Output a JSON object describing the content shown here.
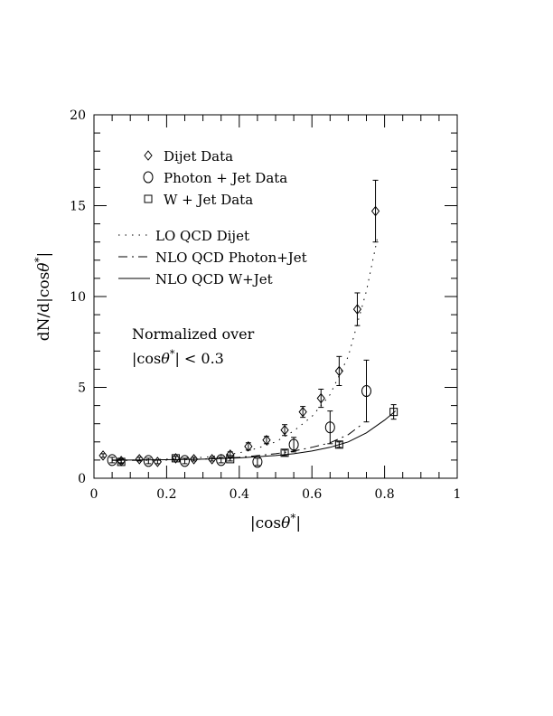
{
  "chart_data": {
    "type": "scatter",
    "title": "",
    "xlabel": "|cosθ*|",
    "ylabel": "dN/d|cosθ*|",
    "xlim": [
      0,
      1
    ],
    "ylim": [
      0,
      20
    ],
    "xticks": [
      "0",
      "0.2",
      "0.4",
      "0.6",
      "0.8",
      "1"
    ],
    "yticks": [
      "0",
      "5",
      "10",
      "15",
      "20"
    ],
    "annotation": [
      "Normalized over",
      "|cosθ*| < 0.3"
    ],
    "series": [
      {
        "name": "Dijet Data",
        "kind": "points",
        "marker": "diamond",
        "x": [
          0.025,
          0.075,
          0.125,
          0.175,
          0.225,
          0.275,
          0.325,
          0.375,
          0.425,
          0.475,
          0.525,
          0.575,
          0.625,
          0.675,
          0.725,
          0.775
        ],
        "y": [
          1.25,
          0.95,
          1.05,
          0.9,
          1.1,
          1.05,
          1.05,
          1.3,
          1.75,
          2.1,
          2.65,
          3.65,
          4.4,
          5.9,
          9.3,
          14.7
        ],
        "err": [
          0.1,
          0.1,
          0.1,
          0.1,
          0.1,
          0.1,
          0.1,
          0.15,
          0.2,
          0.2,
          0.3,
          0.3,
          0.5,
          0.8,
          0.9,
          1.7
        ]
      },
      {
        "name": "Photon + Jet Data",
        "kind": "points",
        "marker": "circle",
        "x": [
          0.05,
          0.15,
          0.25,
          0.35,
          0.45,
          0.55,
          0.65,
          0.75
        ],
        "y": [
          1.0,
          0.95,
          0.95,
          1.0,
          0.9,
          1.85,
          2.8,
          4.8
        ],
        "err": [
          0.15,
          0.15,
          0.15,
          0.15,
          0.2,
          0.4,
          0.9,
          1.7
        ]
      },
      {
        "name": "W + Jet Data",
        "kind": "points",
        "marker": "square",
        "x": [
          0.075,
          0.225,
          0.375,
          0.525,
          0.675,
          0.825
        ],
        "y": [
          0.9,
          1.1,
          1.05,
          1.4,
          1.85,
          3.65
        ],
        "err": [
          0.1,
          0.1,
          0.1,
          0.15,
          0.15,
          0.4
        ]
      },
      {
        "name": "LO QCD Dijet",
        "kind": "line",
        "style": "dotted",
        "x": [
          0.05,
          0.1,
          0.15,
          0.2,
          0.25,
          0.3,
          0.35,
          0.4,
          0.45,
          0.5,
          0.55,
          0.6,
          0.65,
          0.7,
          0.75,
          0.78
        ],
        "y": [
          1.0,
          1.0,
          1.02,
          1.05,
          1.1,
          1.15,
          1.25,
          1.4,
          1.65,
          2.0,
          2.6,
          3.4,
          4.6,
          6.7,
          10.3,
          13.2
        ]
      },
      {
        "name": "NLO QCD Photon+Jet",
        "kind": "line",
        "style": "dashdot",
        "x": [
          0.05,
          0.1,
          0.2,
          0.3,
          0.4,
          0.5,
          0.55,
          0.6,
          0.65,
          0.7,
          0.74
        ],
        "y": [
          0.98,
          0.98,
          1.0,
          1.05,
          1.15,
          1.35,
          1.5,
          1.7,
          1.95,
          2.4,
          3.0
        ]
      },
      {
        "name": "NLO QCD W+Jet",
        "kind": "line",
        "style": "solid",
        "x": [
          0.05,
          0.1,
          0.2,
          0.3,
          0.4,
          0.5,
          0.55,
          0.6,
          0.65,
          0.7,
          0.75,
          0.8,
          0.83
        ],
        "y": [
          1.0,
          1.0,
          1.02,
          1.05,
          1.12,
          1.25,
          1.35,
          1.5,
          1.7,
          2.0,
          2.5,
          3.2,
          3.7
        ]
      }
    ]
  }
}
